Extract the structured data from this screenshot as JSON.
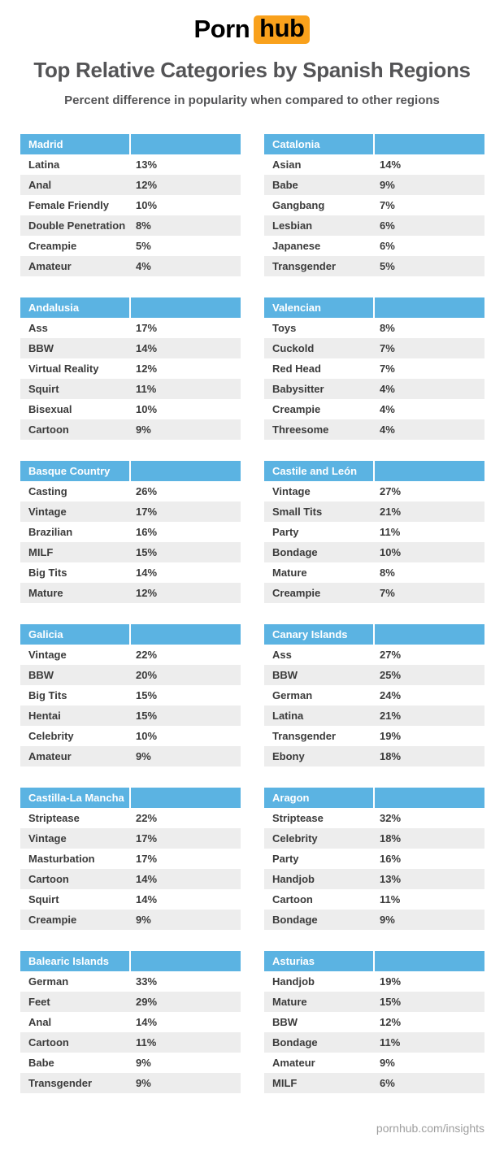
{
  "logo": {
    "text_plain": "Porn",
    "text_boxed": "hub"
  },
  "header": {
    "title": "Top Relative Categories by Spanish Regions",
    "subtitle": "Percent difference in popularity when compared to other regions"
  },
  "footer": {
    "text": "pornhub.com/insights"
  },
  "colors": {
    "header_blue": "#5bb3e2",
    "row_alt_gray": "#ededed",
    "logo_orange": "#f9a11c",
    "title_gray": "#545456",
    "body_text": "#3b3b3b",
    "footer_gray": "#9e9e9e"
  },
  "chart_data": [
    {
      "type": "table",
      "region": "Madrid",
      "rows": [
        [
          "Latina",
          "13%"
        ],
        [
          "Anal",
          "12%"
        ],
        [
          "Female Friendly",
          "10%"
        ],
        [
          "Double Penetration",
          "8%"
        ],
        [
          "Creampie",
          "5%"
        ],
        [
          "Amateur",
          "4%"
        ]
      ]
    },
    {
      "type": "table",
      "region": "Catalonia",
      "rows": [
        [
          "Asian",
          "14%"
        ],
        [
          "Babe",
          "9%"
        ],
        [
          "Gangbang",
          "7%"
        ],
        [
          "Lesbian",
          "6%"
        ],
        [
          "Japanese",
          "6%"
        ],
        [
          "Transgender",
          "5%"
        ]
      ]
    },
    {
      "type": "table",
      "region": "Andalusia",
      "rows": [
        [
          "Ass",
          "17%"
        ],
        [
          "BBW",
          "14%"
        ],
        [
          "Virtual Reality",
          "12%"
        ],
        [
          "Squirt",
          "11%"
        ],
        [
          "Bisexual",
          "10%"
        ],
        [
          "Cartoon",
          "9%"
        ]
      ]
    },
    {
      "type": "table",
      "region": "Valencian",
      "rows": [
        [
          "Toys",
          "8%"
        ],
        [
          "Cuckold",
          "7%"
        ],
        [
          "Red Head",
          "7%"
        ],
        [
          "Babysitter",
          "4%"
        ],
        [
          "Creampie",
          "4%"
        ],
        [
          "Threesome",
          "4%"
        ]
      ]
    },
    {
      "type": "table",
      "region": "Basque Country",
      "rows": [
        [
          "Casting",
          "26%"
        ],
        [
          "Vintage",
          "17%"
        ],
        [
          "Brazilian",
          "16%"
        ],
        [
          "MILF",
          "15%"
        ],
        [
          "Big Tits",
          "14%"
        ],
        [
          "Mature",
          "12%"
        ]
      ]
    },
    {
      "type": "table",
      "region": "Castile and León",
      "rows": [
        [
          "Vintage",
          "27%"
        ],
        [
          "Small Tits",
          "21%"
        ],
        [
          "Party",
          "11%"
        ],
        [
          "Bondage",
          "10%"
        ],
        [
          "Mature",
          "8%"
        ],
        [
          "Creampie",
          "7%"
        ]
      ]
    },
    {
      "type": "table",
      "region": "Galicia",
      "rows": [
        [
          "Vintage",
          "22%"
        ],
        [
          "BBW",
          "20%"
        ],
        [
          "Big Tits",
          "15%"
        ],
        [
          "Hentai",
          "15%"
        ],
        [
          "Celebrity",
          "10%"
        ],
        [
          "Amateur",
          "9%"
        ]
      ]
    },
    {
      "type": "table",
      "region": "Canary Islands",
      "rows": [
        [
          "Ass",
          "27%"
        ],
        [
          "BBW",
          "25%"
        ],
        [
          "German",
          "24%"
        ],
        [
          "Latina",
          "21%"
        ],
        [
          "Transgender",
          "19%"
        ],
        [
          "Ebony",
          "18%"
        ]
      ]
    },
    {
      "type": "table",
      "region": "Castilla-La Mancha",
      "rows": [
        [
          "Striptease",
          "22%"
        ],
        [
          "Vintage",
          "17%"
        ],
        [
          "Masturbation",
          "17%"
        ],
        [
          "Cartoon",
          "14%"
        ],
        [
          "Squirt",
          "14%"
        ],
        [
          "Creampie",
          "9%"
        ]
      ]
    },
    {
      "type": "table",
      "region": "Aragon",
      "rows": [
        [
          "Striptease",
          "32%"
        ],
        [
          "Celebrity",
          "18%"
        ],
        [
          "Party",
          "16%"
        ],
        [
          "Handjob",
          "13%"
        ],
        [
          "Cartoon",
          "11%"
        ],
        [
          "Bondage",
          "9%"
        ]
      ]
    },
    {
      "type": "table",
      "region": "Balearic Islands",
      "rows": [
        [
          "German",
          "33%"
        ],
        [
          "Feet",
          "29%"
        ],
        [
          "Anal",
          "14%"
        ],
        [
          "Cartoon",
          "11%"
        ],
        [
          "Babe",
          "9%"
        ],
        [
          "Transgender",
          "9%"
        ]
      ]
    },
    {
      "type": "table",
      "region": "Asturias",
      "rows": [
        [
          "Handjob",
          "19%"
        ],
        [
          "Mature",
          "15%"
        ],
        [
          "BBW",
          "12%"
        ],
        [
          "Bondage",
          "11%"
        ],
        [
          "Amateur",
          "9%"
        ],
        [
          "MILF",
          "6%"
        ]
      ]
    }
  ]
}
